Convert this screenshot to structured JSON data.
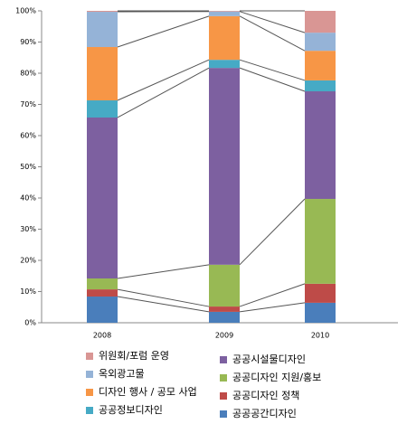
{
  "chart_data": {
    "type": "stacked_bar_100",
    "categories": [
      "2008",
      "2009",
      "2010"
    ],
    "series": [
      {
        "name": "공공공간디자인",
        "color": "#4a7ebb",
        "values": [
          8.4,
          3.5,
          6.4
        ]
      },
      {
        "name": "공공디자인 정책",
        "color": "#be4b48",
        "values": [
          2.3,
          1.7,
          6.1
        ]
      },
      {
        "name": "공공디자인 지원/홍보",
        "color": "#98b954",
        "values": [
          3.5,
          13.4,
          27.2
        ]
      },
      {
        "name": "공공시설물디자인",
        "color": "#7d60a0",
        "values": [
          51.6,
          63.1,
          34.5
        ]
      },
      {
        "name": "공공정보디자인",
        "color": "#46aac5",
        "values": [
          5.5,
          2.6,
          3.5
        ]
      },
      {
        "name": "디자인 행사 / 공모 사업",
        "color": "#f79646",
        "values": [
          17.1,
          14.0,
          9.5
        ]
      },
      {
        "name": "옥외광고물",
        "color": "#95b3d7",
        "values": [
          11.3,
          1.5,
          5.8
        ]
      },
      {
        "name": "위원회/포럼 운영",
        "color": "#d99694",
        "values": [
          0.3,
          0.2,
          7.0
        ]
      }
    ],
    "ylim": [
      0,
      100
    ],
    "yticks": [
      {
        "value": 0,
        "label": "0%"
      },
      {
        "value": 10,
        "label": "10%"
      },
      {
        "value": 20,
        "label": "20%"
      },
      {
        "value": 30,
        "label": "30%"
      },
      {
        "value": 40,
        "label": "40%"
      },
      {
        "value": 50,
        "label": "50%"
      },
      {
        "value": 60,
        "label": "60%"
      },
      {
        "value": 70,
        "label": "70%"
      },
      {
        "value": 80,
        "label": "80%"
      },
      {
        "value": 90,
        "label": "90%"
      },
      {
        "value": 100,
        "label": "100%"
      }
    ],
    "grid": false
  }
}
